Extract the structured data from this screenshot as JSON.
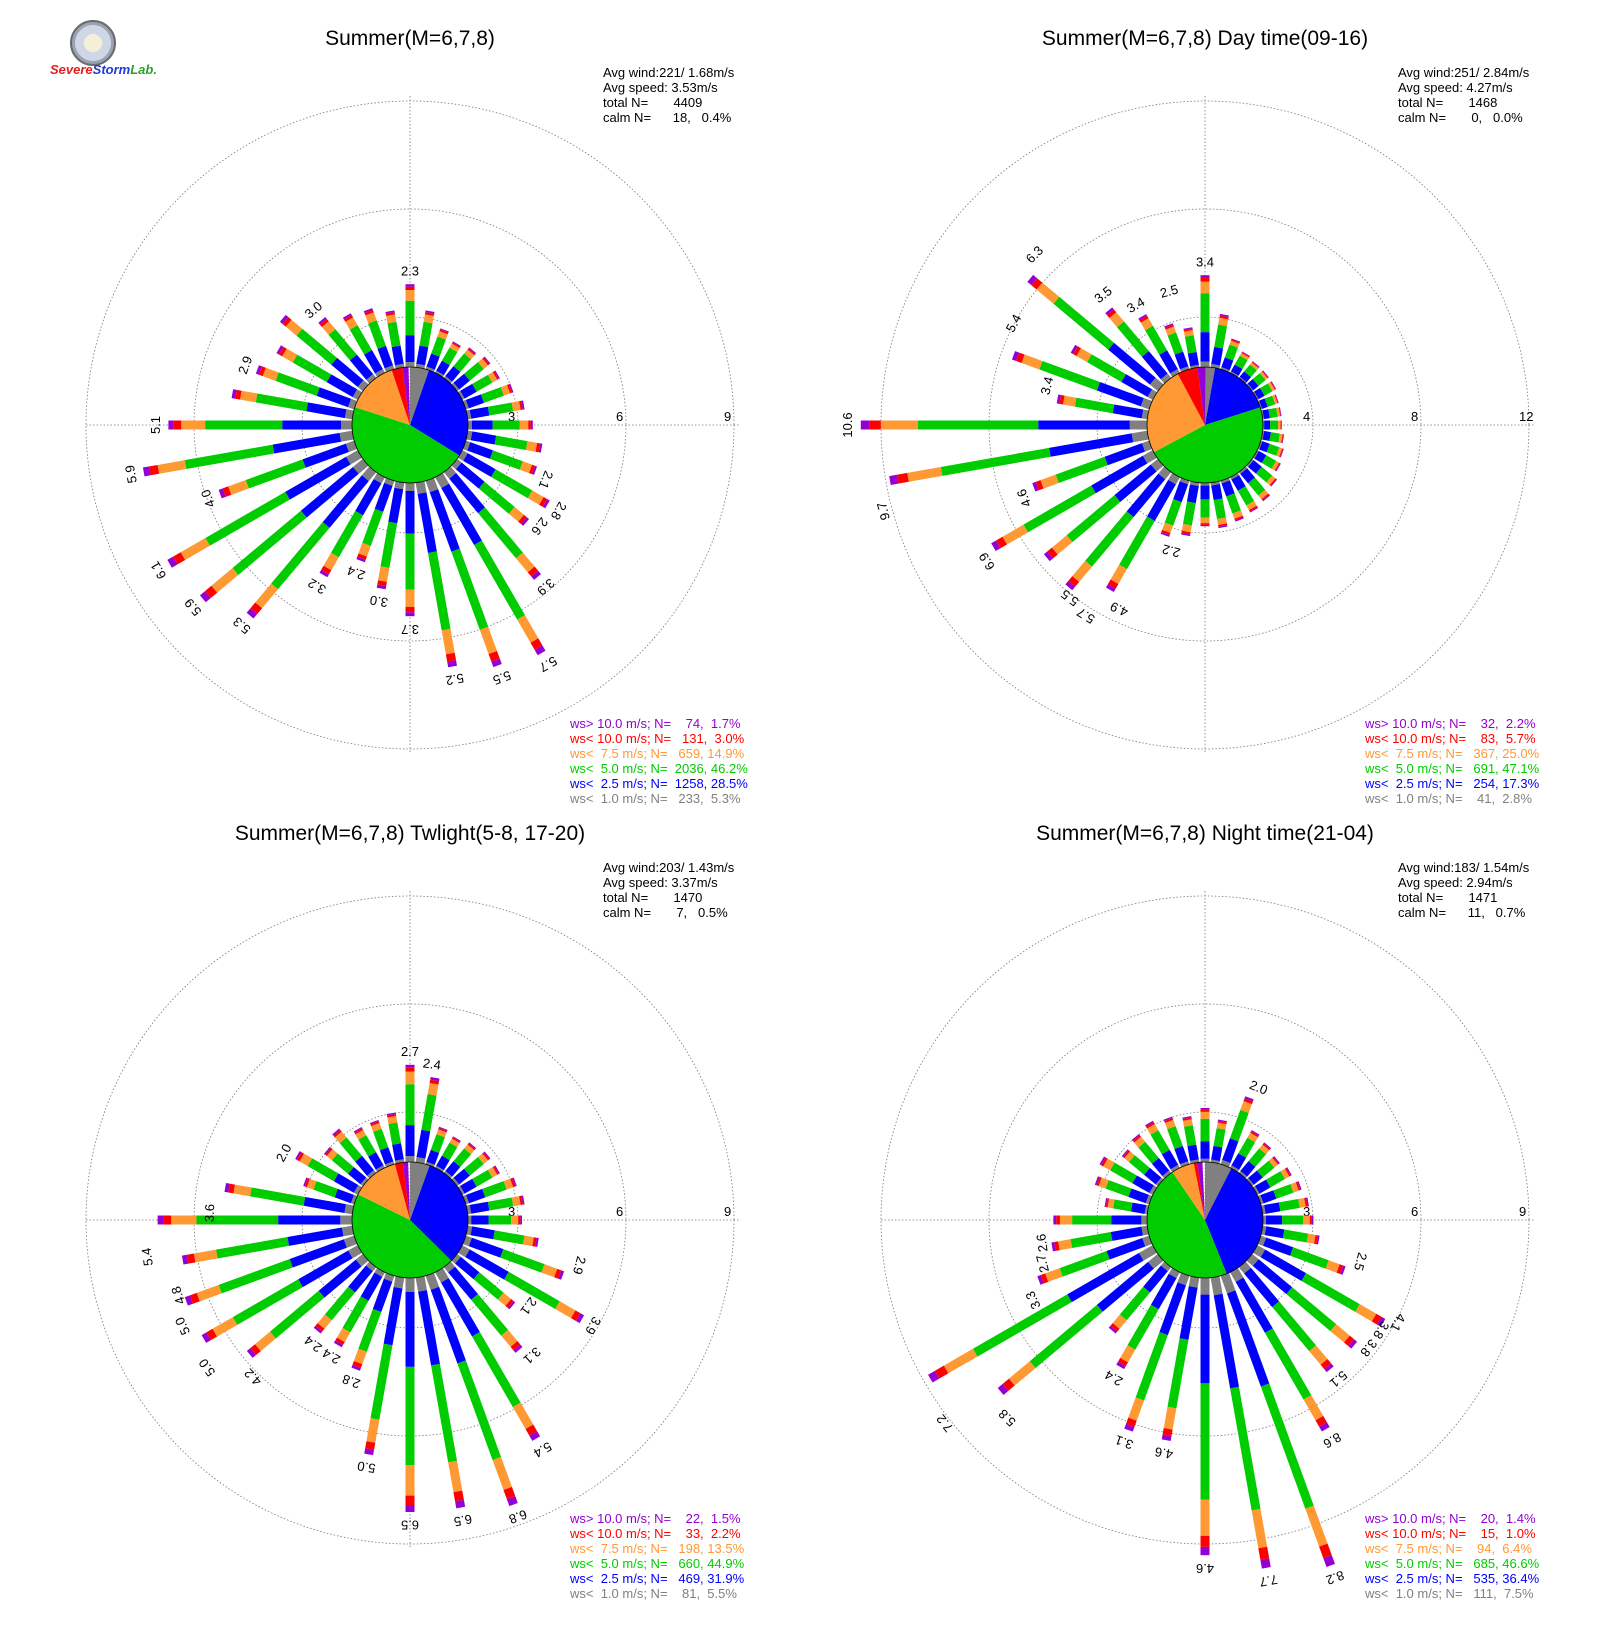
{
  "colors": {
    "ws_gt_10": "#9400d3",
    "ws_lt_10": "#ff0000",
    "ws_lt_7_5": "#ff9933",
    "ws_lt_5": "#00cc00",
    "ws_lt_2_5": "#0000ff",
    "ws_lt_1": "#808080"
  },
  "logo": {
    "text_a": "Severe",
    "text_b": "Storm",
    "text_c": "Lab."
  },
  "chart_data": [
    {
      "type": "polar",
      "title": "Summer(M=6,7,8)",
      "rlim": [
        0,
        9
      ],
      "rings": [
        "3",
        "6",
        "9"
      ],
      "stats": [
        "Avg wind:221/ 1.68m/s",
        "Avg speed: 3.53m/s",
        "total N=       4409",
        "calm N=      18,   0.4%"
      ],
      "legend": [
        "ws> 10.0 m/s; N=    74,  1.7%",
        "ws< 10.0 m/s; N=   131,  3.0%",
        "ws<  7.5 m/s; N=   659, 14.9%",
        "ws<  5.0 m/s; N=  2036, 46.2%",
        "ws<  2.5 m/s; N=  1258, 28.5%",
        "ws<  1.0 m/s; N=   233,  5.3%"
      ],
      "pie": [
        5.3,
        28.5,
        46.2,
        14.9,
        3.0,
        1.7
      ],
      "directions_deg": [
        0,
        10,
        20,
        30,
        40,
        50,
        60,
        70,
        80,
        90,
        100,
        110,
        120,
        130,
        140,
        150,
        160,
        170,
        180,
        190,
        200,
        210,
        220,
        230,
        240,
        250,
        260,
        270,
        280,
        290,
        300,
        310,
        320,
        330,
        340,
        350
      ],
      "bar_totals": [
        2.3,
        1.6,
        1.2,
        1.0,
        1.1,
        1.2,
        1.2,
        1.4,
        1.6,
        1.8,
        2.1,
        2.1,
        2.8,
        2.6,
        3.9,
        5.7,
        5.5,
        5.2,
        3.7,
        3.0,
        2.4,
        3.2,
        5.3,
        5.9,
        6.1,
        4.0,
        5.9,
        5.1,
        3.4,
        2.9,
        2.6,
        3.0,
        2.2,
        1.9,
        1.8,
        1.6
      ],
      "labels": [
        {
          "dir": 0,
          "text": "2.3"
        },
        {
          "dir": 120,
          "text": "2.8"
        },
        {
          "dir": 112,
          "text": "2.1"
        },
        {
          "dir": 128,
          "text": "2.6"
        },
        {
          "dir": 140,
          "text": "3.9"
        },
        {
          "dir": 150,
          "text": "5.7"
        },
        {
          "dir": 160,
          "text": "5.5"
        },
        {
          "dir": 170,
          "text": "5.2"
        },
        {
          "dir": 180,
          "text": "3.7"
        },
        {
          "dir": 190,
          "text": "3.0"
        },
        {
          "dir": 200,
          "text": "2.4"
        },
        {
          "dir": 210,
          "text": "3.2"
        },
        {
          "dir": 220,
          "text": "5.3"
        },
        {
          "dir": 230,
          "text": "5.9"
        },
        {
          "dir": 240,
          "text": "6.1"
        },
        {
          "dir": 250,
          "text": "4.0"
        },
        {
          "dir": 260,
          "text": "5.9"
        },
        {
          "dir": 270,
          "text": "5.1"
        },
        {
          "dir": 290,
          "text": "2.9"
        },
        {
          "dir": 320,
          "text": "3.0"
        }
      ]
    },
    {
      "type": "polar",
      "title": "Summer(M=6,7,8) Day time(09-16)",
      "rlim": [
        0,
        12
      ],
      "rings": [
        "4",
        "8",
        "12"
      ],
      "stats": [
        "Avg wind:251/ 2.84m/s",
        "Avg speed: 4.27m/s",
        "total N=       1468",
        "calm N=       0,   0.0%"
      ],
      "legend": [
        "ws> 10.0 m/s; N=    32,  2.2%",
        "ws< 10.0 m/s; N=    83,  5.7%",
        "ws<  7.5 m/s; N=   367, 25.0%",
        "ws<  5.0 m/s; N=   691, 47.1%",
        "ws<  2.5 m/s; N=   254, 17.3%",
        "ws<  1.0 m/s; N=    41,  2.8%"
      ],
      "pie": [
        2.8,
        17.3,
        47.1,
        25.0,
        5.7,
        2.2
      ],
      "directions_deg": [
        0,
        10,
        20,
        30,
        40,
        50,
        60,
        70,
        80,
        90,
        100,
        110,
        120,
        130,
        140,
        150,
        160,
        170,
        180,
        190,
        200,
        210,
        220,
        230,
        240,
        250,
        260,
        270,
        280,
        290,
        300,
        310,
        320,
        330,
        340,
        350
      ],
      "bar_totals": [
        3.4,
        2.0,
        1.2,
        0.9,
        0.8,
        0.8,
        0.8,
        0.7,
        0.7,
        0.7,
        0.8,
        0.9,
        1.0,
        1.2,
        1.4,
        1.5,
        1.6,
        1.7,
        1.6,
        2.0,
        2.2,
        4.9,
        5.7,
        5.5,
        6.9,
        4.6,
        9.7,
        10.6,
        3.4,
        5.4,
        3.5,
        6.3,
        3.4,
        2.5,
        1.8,
        1.5
      ],
      "labels": [
        {
          "dir": 0,
          "text": "3.4"
        },
        {
          "dir": 345,
          "text": "2.5"
        },
        {
          "dir": 330,
          "text": "3.4"
        },
        {
          "dir": 315,
          "text": "6.3"
        },
        {
          "dir": 322,
          "text": "3.5"
        },
        {
          "dir": 298,
          "text": "5.4"
        },
        {
          "dir": 284,
          "text": "3.4"
        },
        {
          "dir": 270,
          "text": "10.6"
        },
        {
          "dir": 255,
          "text": "9.7"
        },
        {
          "dir": 248,
          "text": "4.6"
        },
        {
          "dir": 238,
          "text": "6.9"
        },
        {
          "dir": 218,
          "text": "5.5"
        },
        {
          "dir": 212,
          "text": "5.7"
        },
        {
          "dir": 205,
          "text": "4.9"
        },
        {
          "dir": 195,
          "text": "2.2"
        }
      ]
    },
    {
      "type": "polar",
      "title": "Summer(M=6,7,8) Twlight(5-8, 17-20)",
      "rlim": [
        0,
        9
      ],
      "rings": [
        "3",
        "6",
        "9"
      ],
      "stats": [
        "Avg wind:203/ 1.43m/s",
        "Avg speed: 3.37m/s",
        "total N=       1470",
        "calm N=       7,   0.5%"
      ],
      "legend": [
        "ws> 10.0 m/s; N=    22,  1.5%",
        "ws< 10.0 m/s; N=    33,  2.2%",
        "ws<  7.5 m/s; N=   198, 13.5%",
        "ws<  5.0 m/s; N=   660, 44.9%",
        "ws<  2.5 m/s; N=   469, 31.9%",
        "ws<  1.0 m/s; N=    81,  5.5%"
      ],
      "pie": [
        5.5,
        31.9,
        44.9,
        13.5,
        2.2,
        1.5
      ],
      "directions_deg": [
        0,
        10,
        20,
        30,
        40,
        50,
        60,
        70,
        80,
        90,
        100,
        110,
        120,
        130,
        140,
        150,
        160,
        170,
        180,
        190,
        200,
        210,
        220,
        230,
        240,
        250,
        260,
        270,
        280,
        290,
        300,
        310,
        320,
        330,
        340,
        350
      ],
      "bar_totals": [
        2.7,
        2.4,
        1.1,
        1.0,
        1.1,
        1.2,
        1.2,
        1.5,
        1.6,
        1.5,
        2.0,
        2.9,
        3.9,
        2.1,
        3.1,
        5.4,
        6.8,
        6.5,
        6.5,
        5.0,
        2.8,
        2.4,
        2.4,
        4.2,
        5.0,
        5.0,
        4.8,
        5.4,
        3.6,
        1.5,
        2.0,
        1.4,
        1.6,
        1.3,
        1.3,
        1.4
      ],
      "labels": [
        {
          "dir": 0,
          "text": "2.7"
        },
        {
          "dir": 8,
          "text": "2.4"
        },
        {
          "dir": 105,
          "text": "2.9"
        },
        {
          "dir": 120,
          "text": "3.9"
        },
        {
          "dir": 126,
          "text": "2.1"
        },
        {
          "dir": 138,
          "text": "3.1"
        },
        {
          "dir": 150,
          "text": "5.4"
        },
        {
          "dir": 160,
          "text": "6.8"
        },
        {
          "dir": 170,
          "text": "6.5"
        },
        {
          "dir": 180,
          "text": "6.5"
        },
        {
          "dir": 190,
          "text": "5.0"
        },
        {
          "dir": 200,
          "text": "2.8"
        },
        {
          "dir": 210,
          "text": "2.4"
        },
        {
          "dir": 218,
          "text": "2.4"
        },
        {
          "dir": 225,
          "text": "4.2"
        },
        {
          "dir": 234,
          "text": "5.0"
        },
        {
          "dir": 245,
          "text": "5.0"
        },
        {
          "dir": 252,
          "text": "4.8"
        },
        {
          "dir": 262,
          "text": "5.4"
        },
        {
          "dir": 272,
          "text": "3.6"
        },
        {
          "dir": 298,
          "text": "2.0"
        }
      ]
    },
    {
      "type": "polar",
      "title": "Summer(M=6,7,8) Night time(21-04)",
      "rlim": [
        0,
        9
      ],
      "rings": [
        "3",
        "6",
        "9"
      ],
      "stats": [
        "Avg wind:183/ 1.54m/s",
        "Avg speed: 2.94m/s",
        "total N=       1471",
        "calm N=      11,   0.7%"
      ],
      "legend": [
        "ws> 10.0 m/s; N=    20,  1.4%",
        "ws< 10.0 m/s; N=    15,  1.0%",
        "ws<  7.5 m/s; N=    94,  6.4%",
        "ws<  5.0 m/s; N=   685, 46.6%",
        "ws<  2.5 m/s; N=   535, 36.4%",
        "ws<  1.0 m/s; N=   111,  7.5%"
      ],
      "pie": [
        7.5,
        36.4,
        46.6,
        6.4,
        1.0,
        1.4
      ],
      "directions_deg": [
        0,
        10,
        20,
        30,
        40,
        50,
        60,
        70,
        80,
        90,
        100,
        110,
        120,
        130,
        140,
        150,
        160,
        170,
        180,
        190,
        200,
        210,
        220,
        230,
        240,
        250,
        260,
        270,
        280,
        290,
        300,
        310,
        320,
        330,
        340,
        350
      ],
      "bar_totals": [
        1.5,
        1.2,
        2.0,
        1.2,
        1.1,
        1.0,
        1.1,
        1.2,
        1.3,
        1.4,
        1.6,
        2.5,
        4.1,
        3.8,
        3.8,
        5.1,
        8.6,
        8.2,
        7.7,
        4.6,
        4.6,
        3.1,
        2.4,
        5.8,
        7.2,
        3.3,
        2.7,
        2.6,
        1.2,
        1.6,
        1.7,
        1.3,
        1.4,
        1.5,
        1.4,
        1.3
      ],
      "labels": [
        {
          "dir": 22,
          "text": "2.0"
        },
        {
          "dir": 105,
          "text": "2.5"
        },
        {
          "dir": 118,
          "text": "4.1"
        },
        {
          "dir": 122,
          "text": "3.8"
        },
        {
          "dir": 128,
          "text": "3.8"
        },
        {
          "dir": 140,
          "text": "5.1"
        },
        {
          "dir": 150,
          "text": "8.6"
        },
        {
          "dir": 160,
          "text": "8.2"
        },
        {
          "dir": 170,
          "text": "7.7"
        },
        {
          "dir": 180,
          "text": "4.6"
        },
        {
          "dir": 190,
          "text": "4.6"
        },
        {
          "dir": 200,
          "text": "3.1"
        },
        {
          "dir": 210,
          "text": "2.4"
        },
        {
          "dir": 225,
          "text": "5.8"
        },
        {
          "dir": 232,
          "text": "7.2"
        },
        {
          "dir": 245,
          "text": "3.3"
        },
        {
          "dir": 255,
          "text": "2.7"
        },
        {
          "dir": 262,
          "text": "2.6"
        }
      ]
    }
  ]
}
